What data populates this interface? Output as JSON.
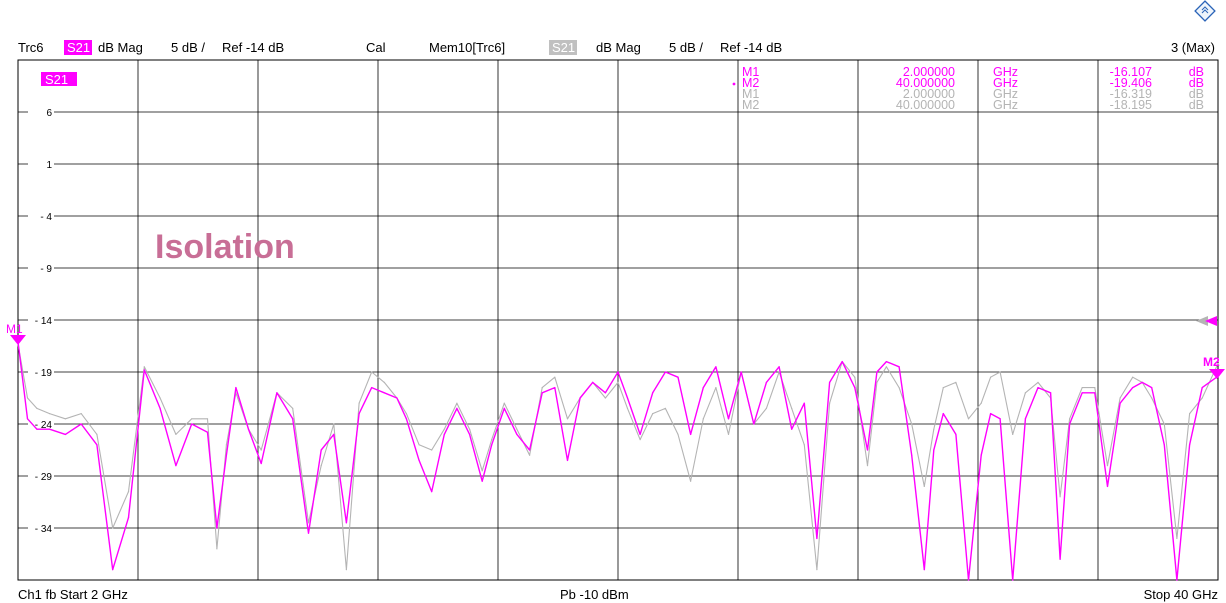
{
  "header": {
    "trace": "Trc6",
    "param": "S21",
    "format": "dB Mag",
    "scale": "5 dB /",
    "ref": "Ref -14 dB",
    "cal": "Cal",
    "memory": "Mem10[Trc6]",
    "mem_param": "S21",
    "mem_format": "dB Mag",
    "mem_scale": "5 dB /",
    "mem_ref": "Ref -14 dB",
    "window": "3 (Max)"
  },
  "trace_label": "S21",
  "annotation": "Isolation",
  "marker_table": [
    {
      "name": "M1",
      "freq": "2.000000",
      "unit": "GHz",
      "value": "-16.107",
      "vunit": "dB",
      "active": false,
      "memory": false
    },
    {
      "name": "M2",
      "freq": "40.000000",
      "unit": "GHz",
      "value": "-19.406",
      "vunit": "dB",
      "active": true,
      "memory": false
    },
    {
      "name": "M1",
      "freq": "2.000000",
      "unit": "GHz",
      "value": "-16.319",
      "vunit": "dB",
      "active": false,
      "memory": true
    },
    {
      "name": "M2",
      "freq": "40.000000",
      "unit": "GHz",
      "value": "-18.195",
      "vunit": "dB",
      "active": false,
      "memory": true
    }
  ],
  "footer": {
    "channel": "Ch1  fb  Start  2 GHz",
    "power": "Pb  -10 dBm",
    "stop": "Stop  40 GHz"
  },
  "colors": {
    "trace": "#ff00ff",
    "memory": "#b4b4b4",
    "grid": "#000000",
    "annotation": "#c86e96"
  },
  "chart_data": {
    "type": "line",
    "xlabel": "",
    "ylabel": "",
    "xlim": [
      2,
      40
    ],
    "ylim": [
      -39,
      11
    ],
    "yticks": [
      6,
      1,
      -4,
      -9,
      -14,
      -19,
      -24,
      -29,
      -34
    ],
    "xunit": "GHz",
    "yunit": "dB",
    "grid": true,
    "series": [
      {
        "name": "S21",
        "color": "#ff00ff",
        "x": [
          2.0,
          2.3,
          2.6,
          3.0,
          3.5,
          4.0,
          4.5,
          5.0,
          5.5,
          6.0,
          6.5,
          7.0,
          7.5,
          8.0,
          8.3,
          8.6,
          8.9,
          9.3,
          9.7,
          10.2,
          10.7,
          11.2,
          11.6,
          12.0,
          12.4,
          12.8,
          13.2,
          13.6,
          14.0,
          14.3,
          14.7,
          15.1,
          15.5,
          15.9,
          16.3,
          16.7,
          17.0,
          17.4,
          17.8,
          18.2,
          18.6,
          19.0,
          19.4,
          19.8,
          20.2,
          20.6,
          21.0,
          21.3,
          21.7,
          22.1,
          22.5,
          22.9,
          23.3,
          23.7,
          24.1,
          24.5,
          24.9,
          25.3,
          25.7,
          26.1,
          26.5,
          26.9,
          27.3,
          27.7,
          28.1,
          28.5,
          28.9,
          29.2,
          29.5,
          29.9,
          30.3,
          30.7,
          31.0,
          31.3,
          31.7,
          32.1,
          32.5,
          32.8,
          33.1,
          33.5,
          33.9,
          34.3,
          34.7,
          35.0,
          35.3,
          35.7,
          36.1,
          36.5,
          36.9,
          37.3,
          37.6,
          37.9,
          38.3,
          38.7,
          39.1,
          39.5,
          40.0
        ],
        "y": [
          -16.1,
          -23.5,
          -24.5,
          -24.5,
          -25.0,
          -24.0,
          -26.0,
          -38.0,
          -33.0,
          -18.8,
          -22.5,
          -28.0,
          -24.0,
          -24.8,
          -34.0,
          -27.0,
          -20.5,
          -24.5,
          -27.8,
          -21.0,
          -23.5,
          -34.5,
          -26.5,
          -25.0,
          -33.5,
          -23.0,
          -20.5,
          -21.0,
          -21.5,
          -23.5,
          -27.5,
          -30.5,
          -25.0,
          -22.5,
          -25.0,
          -29.5,
          -26.0,
          -22.5,
          -25.0,
          -26.5,
          -21.0,
          -20.5,
          -27.5,
          -21.5,
          -20.0,
          -21.0,
          -19.0,
          -21.5,
          -25.0,
          -21.0,
          -19.0,
          -19.5,
          -25.0,
          -20.5,
          -18.5,
          -23.5,
          -19.0,
          -24.0,
          -20.0,
          -18.5,
          -24.5,
          -22.0,
          -35.0,
          -20.0,
          -18.0,
          -20.5,
          -26.5,
          -19.0,
          -18.0,
          -18.5,
          -27.0,
          -38.0,
          -26.5,
          -23.0,
          -25.0,
          -39.0,
          -27.0,
          -23.0,
          -23.5,
          -39.0,
          -23.5,
          -20.5,
          -21.0,
          -37.0,
          -24.0,
          -21.0,
          -21.0,
          -30.0,
          -22.0,
          -20.5,
          -20.0,
          -20.5,
          -26.0,
          -39.0,
          -26.0,
          -20.5,
          -19.406
        ]
      },
      {
        "name": "Mem10[Trc6]",
        "color": "#b4b4b4",
        "x": [
          2.0,
          2.3,
          2.6,
          3.0,
          3.5,
          4.0,
          4.5,
          5.0,
          5.5,
          6.0,
          6.5,
          7.0,
          7.5,
          8.0,
          8.3,
          8.6,
          8.9,
          9.3,
          9.7,
          10.2,
          10.7,
          11.2,
          11.6,
          12.0,
          12.4,
          12.8,
          13.2,
          13.6,
          14.0,
          14.3,
          14.7,
          15.1,
          15.5,
          15.9,
          16.3,
          16.7,
          17.0,
          17.4,
          17.8,
          18.2,
          18.6,
          19.0,
          19.4,
          19.8,
          20.2,
          20.6,
          21.0,
          21.3,
          21.7,
          22.1,
          22.5,
          22.9,
          23.3,
          23.7,
          24.1,
          24.5,
          24.9,
          25.3,
          25.7,
          26.1,
          26.5,
          26.9,
          27.3,
          27.7,
          28.1,
          28.5,
          28.9,
          29.2,
          29.5,
          29.9,
          30.3,
          30.7,
          31.0,
          31.3,
          31.7,
          32.1,
          32.5,
          32.8,
          33.1,
          33.5,
          33.9,
          34.3,
          34.7,
          35.0,
          35.3,
          35.7,
          36.1,
          36.5,
          36.9,
          37.3,
          37.6,
          37.9,
          38.3,
          38.7,
          39.1,
          39.5,
          40.0
        ],
        "y": [
          -16.3,
          -21.5,
          -22.5,
          -23.0,
          -23.5,
          -23.0,
          -25.0,
          -34.0,
          -30.5,
          -18.5,
          -21.5,
          -25.0,
          -23.5,
          -23.5,
          -36.0,
          -26.0,
          -21.0,
          -24.5,
          -26.5,
          -21.0,
          -22.5,
          -33.5,
          -28.0,
          -24.0,
          -38.0,
          -22.0,
          -19.0,
          -20.0,
          -21.5,
          -23.0,
          -26.0,
          -26.5,
          -24.5,
          -22.0,
          -24.5,
          -28.5,
          -25.5,
          -22.0,
          -24.5,
          -27.0,
          -20.5,
          -19.5,
          -23.5,
          -21.5,
          -20.0,
          -21.5,
          -20.0,
          -22.5,
          -25.5,
          -23.0,
          -22.5,
          -25.0,
          -29.5,
          -23.5,
          -20.5,
          -25.0,
          -19.0,
          -24.0,
          -22.5,
          -19.0,
          -22.5,
          -26.0,
          -38.0,
          -22.0,
          -18.0,
          -19.5,
          -28.0,
          -20.0,
          -18.5,
          -20.5,
          -24.0,
          -30.0,
          -24.5,
          -20.5,
          -20.0,
          -23.5,
          -22.0,
          -19.5,
          -19.0,
          -25.0,
          -21.0,
          -20.0,
          -21.5,
          -31.0,
          -23.5,
          -20.5,
          -20.5,
          -28.0,
          -21.5,
          -19.5,
          -20.0,
          -21.5,
          -24.0,
          -35.0,
          -23.0,
          -21.5,
          -18.195
        ]
      }
    ]
  }
}
